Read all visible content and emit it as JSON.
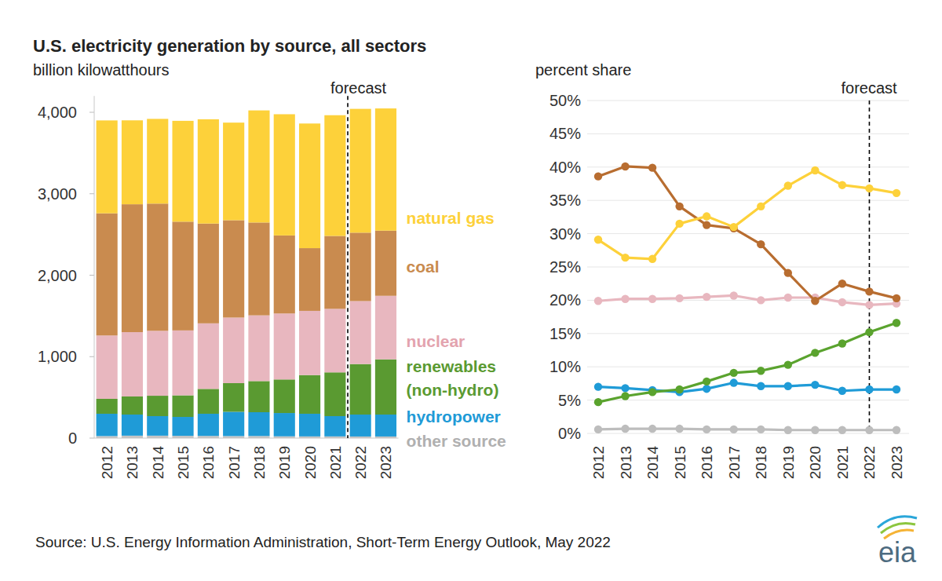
{
  "chart_data": [
    {
      "type": "bar",
      "stacked": true,
      "title": "U.S. electricity generation by source, all sectors",
      "y_label": "billion kilowatthours",
      "categories": [
        "2012",
        "2013",
        "2014",
        "2015",
        "2016",
        "2017",
        "2018",
        "2019",
        "2020",
        "2021",
        "2022",
        "2023"
      ],
      "ylim": [
        0,
        4200
      ],
      "yticks": [
        0,
        {
          "value": 1000,
          "label": "1,000"
        },
        {
          "value": 2000,
          "label": "2,000"
        },
        {
          "value": 3000,
          "label": "3,000"
        },
        {
          "value": 4000,
          "label": "4,000"
        }
      ],
      "legend": "right",
      "annotations": [
        {
          "text": "forecast",
          "x": "2022"
        }
      ],
      "series": [
        {
          "name": "other source",
          "color": "#c4c4c4",
          "values": [
            25,
            30,
            30,
            28,
            27,
            25,
            26,
            22,
            21,
            21,
            20,
            20
          ]
        },
        {
          "name": "hydropower",
          "color": "#1f9bd7",
          "values": [
            274,
            259,
            240,
            232,
            272,
            298,
            292,
            286,
            278,
            249,
            269,
            269
          ]
        },
        {
          "name": "renewables (non-hydro)",
          "color": "#5a9a31",
          "values": [
            183,
            222,
            250,
            265,
            305,
            352,
            382,
            412,
            475,
            537,
            620,
            678
          ]
        },
        {
          "name": "nuclear",
          "color": "#e8b7bf",
          "values": [
            778,
            790,
            797,
            797,
            805,
            805,
            807,
            810,
            788,
            780,
            773,
            780
          ]
        },
        {
          "name": "coal",
          "color": "#c98b4f",
          "values": [
            1500,
            1570,
            1562,
            1335,
            1225,
            1195,
            1140,
            958,
            770,
            895,
            840,
            800
          ]
        },
        {
          "name": "natural gas",
          "color": "#fdd13a",
          "values": [
            1140,
            1030,
            1040,
            1238,
            1280,
            1198,
            1376,
            1488,
            1530,
            1482,
            1520,
            1500
          ]
        }
      ]
    },
    {
      "type": "line",
      "y_label": "percent share",
      "categories": [
        "2012",
        "2013",
        "2014",
        "2015",
        "2016",
        "2017",
        "2018",
        "2019",
        "2020",
        "2021",
        "2022",
        "2023"
      ],
      "ylim": [
        0,
        50
      ],
      "yticks": [
        {
          "value": 0,
          "label": "0%"
        },
        {
          "value": 5,
          "label": "5%"
        },
        {
          "value": 10,
          "label": "10%"
        },
        {
          "value": 15,
          "label": "15%"
        },
        {
          "value": 20,
          "label": "20%"
        },
        {
          "value": 25,
          "label": "25%"
        },
        {
          "value": 30,
          "label": "30%"
        },
        {
          "value": 35,
          "label": "35%"
        },
        {
          "value": 40,
          "label": "40%"
        },
        {
          "value": 45,
          "label": "45%"
        },
        {
          "value": 50,
          "label": "50%"
        }
      ],
      "grid": true,
      "marker": "circle",
      "annotations": [
        {
          "text": "forecast",
          "x": "2022"
        }
      ],
      "series": [
        {
          "color": "#bdbdbd",
          "values": [
            0.6,
            0.7,
            0.7,
            0.7,
            0.6,
            0.6,
            0.6,
            0.5,
            0.5,
            0.5,
            0.5,
            0.5
          ]
        },
        {
          "color": "#1f9bd7",
          "values": [
            7.0,
            6.8,
            6.5,
            6.2,
            6.7,
            7.6,
            7.1,
            7.1,
            7.3,
            6.4,
            6.6,
            6.6
          ]
        },
        {
          "color": "#5aa32e",
          "values": [
            4.7,
            5.6,
            6.2,
            6.6,
            7.8,
            9.1,
            9.4,
            10.3,
            12.1,
            13.5,
            15.2,
            16.6
          ]
        },
        {
          "color": "#e8b7bf",
          "values": [
            19.9,
            20.2,
            20.2,
            20.3,
            20.5,
            20.7,
            20.0,
            20.4,
            20.4,
            19.7,
            19.3,
            19.5
          ]
        },
        {
          "color": "#b86d30",
          "values": [
            38.6,
            40.1,
            39.9,
            34.1,
            31.3,
            30.8,
            28.4,
            24.1,
            19.9,
            22.5,
            21.3,
            20.3
          ]
        },
        {
          "color": "#fdd13a",
          "values": [
            29.1,
            26.4,
            26.2,
            31.5,
            32.6,
            31.0,
            34.1,
            37.2,
            39.5,
            37.3,
            36.8,
            36.1
          ]
        }
      ]
    }
  ],
  "footer": {
    "source": "Source: U.S. Energy Information Administration, Short-Term Energy Outlook, May 2022",
    "logo": "eia"
  }
}
